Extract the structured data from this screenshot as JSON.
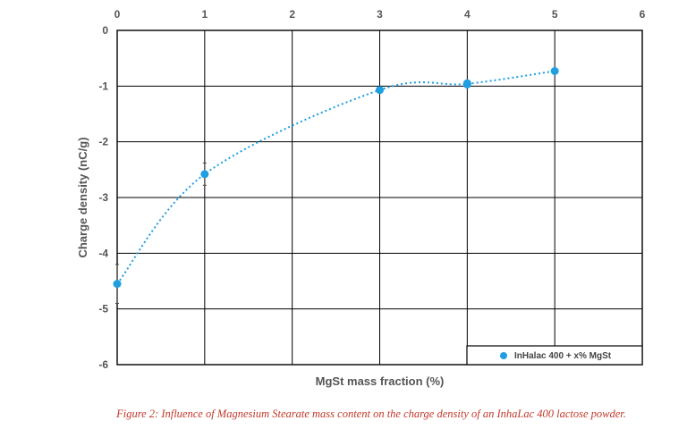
{
  "chart_data": {
    "type": "scatter",
    "xlabel": "MgSt mass fraction (%)",
    "ylabel": "Charge density (nC/g)",
    "xlim": [
      0,
      6
    ],
    "ylim": [
      -6,
      0
    ],
    "x_ticks": [
      0,
      1,
      2,
      3,
      4,
      5,
      6
    ],
    "y_ticks": [
      0,
      -1,
      -2,
      -3,
      -4,
      -5,
      -6
    ],
    "x_axis_position": "top",
    "grid": true,
    "legend_position": "bottom-right",
    "trendline": "dotted smooth curve",
    "series": [
      {
        "name": "InHalac 400 + x% MgSt",
        "color": "#1f9ee0",
        "points": [
          {
            "x": 0,
            "y": -4.55,
            "err": 0.35
          },
          {
            "x": 1,
            "y": -2.58,
            "err": 0.2
          },
          {
            "x": 3,
            "y": -1.07,
            "err": 0.04
          },
          {
            "x": 4,
            "y": -0.97,
            "err": 0.03
          },
          {
            "x": 4,
            "y": -0.95,
            "err": 0.03
          },
          {
            "x": 5,
            "y": -0.73,
            "err": 0.02
          }
        ]
      }
    ]
  },
  "caption": "Figure 2: Influence of Magnesium Stearate mass content on the charge density of an InhaLac 400 lactose powder."
}
